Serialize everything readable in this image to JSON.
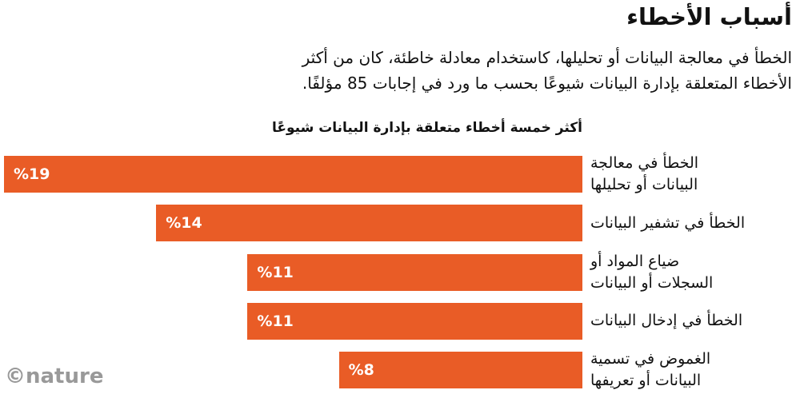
{
  "chart_data": {
    "type": "bar",
    "title": "أسباب الأخطاء",
    "subtitle": "الخطأ في معالجة البيانات أو تحليلها، كاستخدام معادلة خاطئة، كان من أكثر\nالأخطاء المتعلقة بإدارة البيانات شيوعًا بحسب ما ورد في إجابات 85 مؤلفًا.",
    "chart_title": "أكثر خمسة أخطاء متعلقة بإدارة البيانات شيوعًا",
    "categories": [
      "الخطأ في معالجة\nالبيانات أو تحليلها",
      "الخطأ في تشفير البيانات",
      "ضياع المواد أو\nالسجلات أو البيانات",
      "الخطأ في إدخال البيانات",
      "الغموض في تسمية\nالبيانات أو تعريفها"
    ],
    "values": [
      19,
      14,
      11,
      11,
      8
    ],
    "value_labels": [
      "%19",
      "%14",
      "%11",
      "%11",
      "%8"
    ],
    "color": "#e95c26",
    "logo": "©nature"
  }
}
